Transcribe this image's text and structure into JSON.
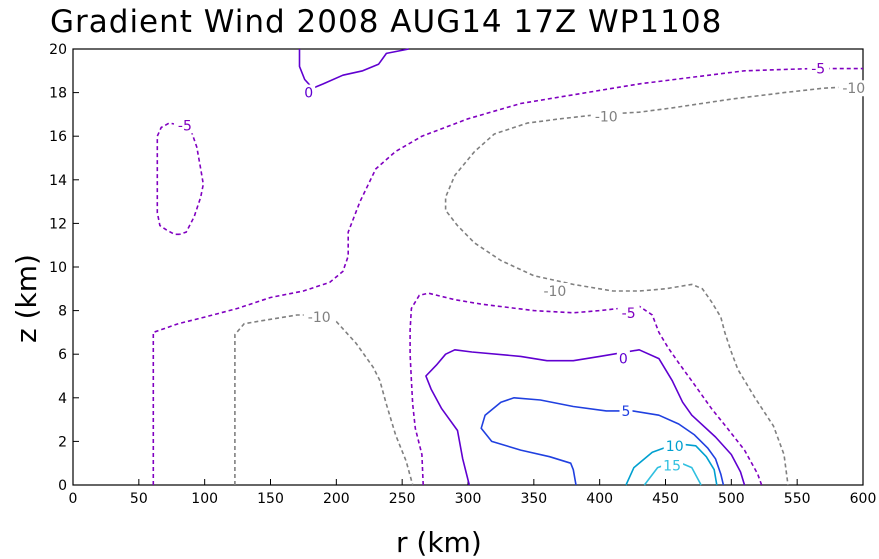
{
  "chart_data": {
    "type": "contour",
    "title": "Gradient Wind 2008 AUG14 17Z  WP1108",
    "xlabel": "r (km)",
    "ylabel": "z (km)",
    "xlim": [
      0,
      600
    ],
    "ylim": [
      0,
      20
    ],
    "x_ticks": [
      "0",
      "50",
      "100",
      "150",
      "200",
      "250",
      "300",
      "350",
      "400",
      "450",
      "500",
      "550",
      "600"
    ],
    "y_ticks": [
      "0",
      "2",
      "4",
      "6",
      "8",
      "10",
      "12",
      "14",
      "16",
      "18",
      "20"
    ],
    "grid": false,
    "contours": [
      {
        "level": -10,
        "label": "-10",
        "color": "#808080",
        "dashed": true,
        "paths": [
          [
            [
              123,
              0
            ],
            [
              123,
              6.9
            ],
            [
              130,
              7.4
            ],
            [
              150,
              7.6
            ],
            [
              170,
              7.8
            ],
            [
              190,
              7.8
            ],
            [
              200,
              7.5
            ],
            [
              215,
              6.5
            ],
            [
              228,
              5.4
            ],
            [
              233,
              4.8
            ],
            [
              238,
              3.7
            ],
            [
              245,
              2.3
            ],
            [
              253,
              1.1
            ],
            [
              258,
              0
            ]
          ],
          [
            [
              600,
              18.3
            ],
            [
              570,
              18.2
            ],
            [
              540,
              18.0
            ],
            [
              500,
              17.7
            ],
            [
              455,
              17.3
            ],
            [
              430,
              17.1
            ],
            [
              400,
              17.0
            ],
            [
              370,
              16.8
            ],
            [
              345,
              16.6
            ],
            [
              320,
              16.1
            ],
            [
              305,
              15.3
            ],
            [
              290,
              14.2
            ],
            [
              283,
              13.2
            ],
            [
              283,
              12.6
            ],
            [
              292,
              11.9
            ],
            [
              305,
              11.1
            ],
            [
              325,
              10.3
            ],
            [
              350,
              9.6
            ],
            [
              380,
              9.2
            ],
            [
              410,
              8.9
            ],
            [
              430,
              8.9
            ],
            [
              450,
              9.0
            ],
            [
              470,
              9.2
            ],
            [
              478,
              9.0
            ],
            [
              485,
              8.4
            ],
            [
              492,
              7.7
            ],
            [
              495,
              7.0
            ],
            [
              500,
              6.1
            ],
            [
              505,
              5.3
            ],
            [
              518,
              4.0
            ],
            [
              532,
              2.7
            ],
            [
              540,
              1.4
            ],
            [
              543,
              0
            ]
          ]
        ],
        "labels": [
          {
            "x": 187,
            "y": 7.7,
            "text": "-10"
          },
          {
            "x": 366,
            "y": 8.9,
            "text": "-10"
          },
          {
            "x": 405,
            "y": 16.9,
            "text": "-10"
          },
          {
            "x": 593,
            "y": 18.2,
            "text": "-10"
          }
        ]
      },
      {
        "level": -5,
        "label": "-5",
        "color": "#8000c0",
        "dashed": true,
        "paths": [
          [
            [
              61,
              0
            ],
            [
              61,
              7.0
            ],
            [
              80,
              7.4
            ],
            [
              100,
              7.7
            ],
            [
              125,
              8.1
            ],
            [
              150,
              8.6
            ],
            [
              175,
              8.9
            ],
            [
              195,
              9.3
            ],
            [
              205,
              9.8
            ],
            [
              209,
              10.5
            ],
            [
              209,
              11.6
            ],
            [
              218,
              13.0
            ],
            [
              230,
              14.5
            ],
            [
              245,
              15.3
            ],
            [
              265,
              16.0
            ],
            [
              300,
              16.8
            ],
            [
              340,
              17.5
            ],
            [
              390,
              18.0
            ],
            [
              430,
              18.4
            ],
            [
              470,
              18.7
            ],
            [
              510,
              19.0
            ],
            [
              560,
              19.1
            ],
            [
              600,
              19.1
            ]
          ],
          [
            [
              81,
              11.5
            ],
            [
              77,
              11.5
            ],
            [
              71,
              11.7
            ],
            [
              66,
              11.9
            ],
            [
              64,
              12.5
            ],
            [
              64,
              13.5
            ],
            [
              64,
              15.0
            ],
            [
              64,
              16.0
            ],
            [
              67,
              16.4
            ],
            [
              73,
              16.6
            ],
            [
              83,
              16.5
            ],
            [
              90,
              16.2
            ],
            [
              94,
              15.5
            ],
            [
              97,
              14.5
            ],
            [
              99,
              13.8
            ],
            [
              97,
              13.2
            ],
            [
              92,
              12.3
            ],
            [
              86,
              11.6
            ],
            [
              81,
              11.5
            ]
          ],
          [
            [
              266,
              0
            ],
            [
              265,
              1.4
            ],
            [
              260,
              2.6
            ],
            [
              258,
              3.7
            ],
            [
              257,
              4.8
            ],
            [
              256,
              6.0
            ],
            [
              256,
              7.1
            ],
            [
              257,
              8.1
            ],
            [
              263,
              8.7
            ],
            [
              270,
              8.8
            ],
            [
              290,
              8.5
            ],
            [
              310,
              8.3
            ],
            [
              350,
              8.0
            ],
            [
              380,
              7.9
            ],
            [
              400,
              8.0
            ],
            [
              430,
              8.2
            ],
            [
              440,
              7.8
            ],
            [
              445,
              7.0
            ],
            [
              452,
              6.3
            ],
            [
              460,
              5.6
            ],
            [
              472,
              4.6
            ],
            [
              485,
              3.5
            ],
            [
              497,
              2.6
            ],
            [
              510,
              1.6
            ],
            [
              520,
              0.5
            ],
            [
              523,
              0
            ]
          ]
        ],
        "labels": [
          {
            "x": 85,
            "y": 16.5,
            "text": "-5"
          },
          {
            "x": 422,
            "y": 7.9,
            "text": "-5"
          },
          {
            "x": 566,
            "y": 19.1,
            "text": "-5"
          }
        ]
      },
      {
        "level": 0,
        "label": "0",
        "color": "#6000d0",
        "dashed": false,
        "paths": [
          [
            [
              172,
              20
            ],
            [
              172,
              19.2
            ],
            [
              176,
              18.6
            ],
            [
              182,
              18.2
            ],
            [
              190,
              18.4
            ],
            [
              205,
              18.8
            ],
            [
              220,
              19.0
            ],
            [
              232,
              19.3
            ],
            [
              238,
              19.8
            ],
            [
              255,
              20.0
            ]
          ],
          [
            [
              301,
              0
            ],
            [
              296,
              1.2
            ],
            [
              292,
              2.5
            ],
            [
              280,
              3.5
            ],
            [
              272,
              4.4
            ],
            [
              268,
              5.0
            ],
            [
              276,
              5.5
            ],
            [
              283,
              6.0
            ],
            [
              290,
              6.2
            ],
            [
              303,
              6.1
            ],
            [
              340,
              5.9
            ],
            [
              360,
              5.7
            ],
            [
              380,
              5.7
            ],
            [
              400,
              5.9
            ],
            [
              430,
              6.2
            ],
            [
              445,
              5.8
            ],
            [
              455,
              4.8
            ],
            [
              463,
              3.8
            ],
            [
              470,
              3.2
            ],
            [
              488,
              2.2
            ],
            [
              500,
              1.4
            ],
            [
              507,
              0.6
            ],
            [
              510,
              0
            ]
          ]
        ],
        "labels": [
          {
            "x": 179,
            "y": 18.0,
            "text": "0"
          },
          {
            "x": 418,
            "y": 5.8,
            "text": "0"
          }
        ]
      },
      {
        "level": 5,
        "label": "5",
        "color": "#2040e0",
        "dashed": false,
        "paths": [
          [
            [
              382,
              0
            ],
            [
              380,
              0.7
            ],
            [
              378,
              1.0
            ],
            [
              362,
              1.3
            ],
            [
              340,
              1.6
            ],
            [
              318,
              2.0
            ],
            [
              310,
              2.6
            ],
            [
              313,
              3.2
            ],
            [
              325,
              3.8
            ],
            [
              335,
              4.0
            ],
            [
              355,
              3.9
            ],
            [
              380,
              3.6
            ],
            [
              405,
              3.4
            ],
            [
              425,
              3.4
            ],
            [
              445,
              3.2
            ],
            [
              460,
              2.8
            ],
            [
              472,
              2.3
            ],
            [
              482,
              1.7
            ],
            [
              488,
              1.2
            ],
            [
              492,
              0.5
            ],
            [
              494,
              0
            ]
          ]
        ],
        "labels": [
          {
            "x": 420,
            "y": 3.4,
            "text": "5"
          }
        ]
      },
      {
        "level": 10,
        "label": "10",
        "color": "#00a0d0",
        "dashed": false,
        "paths": [
          [
            [
              420,
              0
            ],
            [
              426,
              0.8
            ],
            [
              440,
              1.5
            ],
            [
              458,
              1.9
            ],
            [
              473,
              1.8
            ],
            [
              481,
              1.3
            ],
            [
              487,
              0.7
            ],
            [
              489,
              0
            ]
          ]
        ],
        "labels": [
          {
            "x": 457,
            "y": 1.8,
            "text": "10"
          }
        ]
      },
      {
        "level": 15,
        "label": "15",
        "color": "#30c0e0",
        "dashed": false,
        "paths": [
          [
            [
              434,
              0
            ],
            [
              444,
              0.8
            ],
            [
              458,
              1.1
            ],
            [
              470,
              0.8
            ],
            [
              477,
              0
            ]
          ]
        ],
        "labels": [
          {
            "x": 455,
            "y": 0.9,
            "text": "15"
          }
        ]
      }
    ]
  }
}
